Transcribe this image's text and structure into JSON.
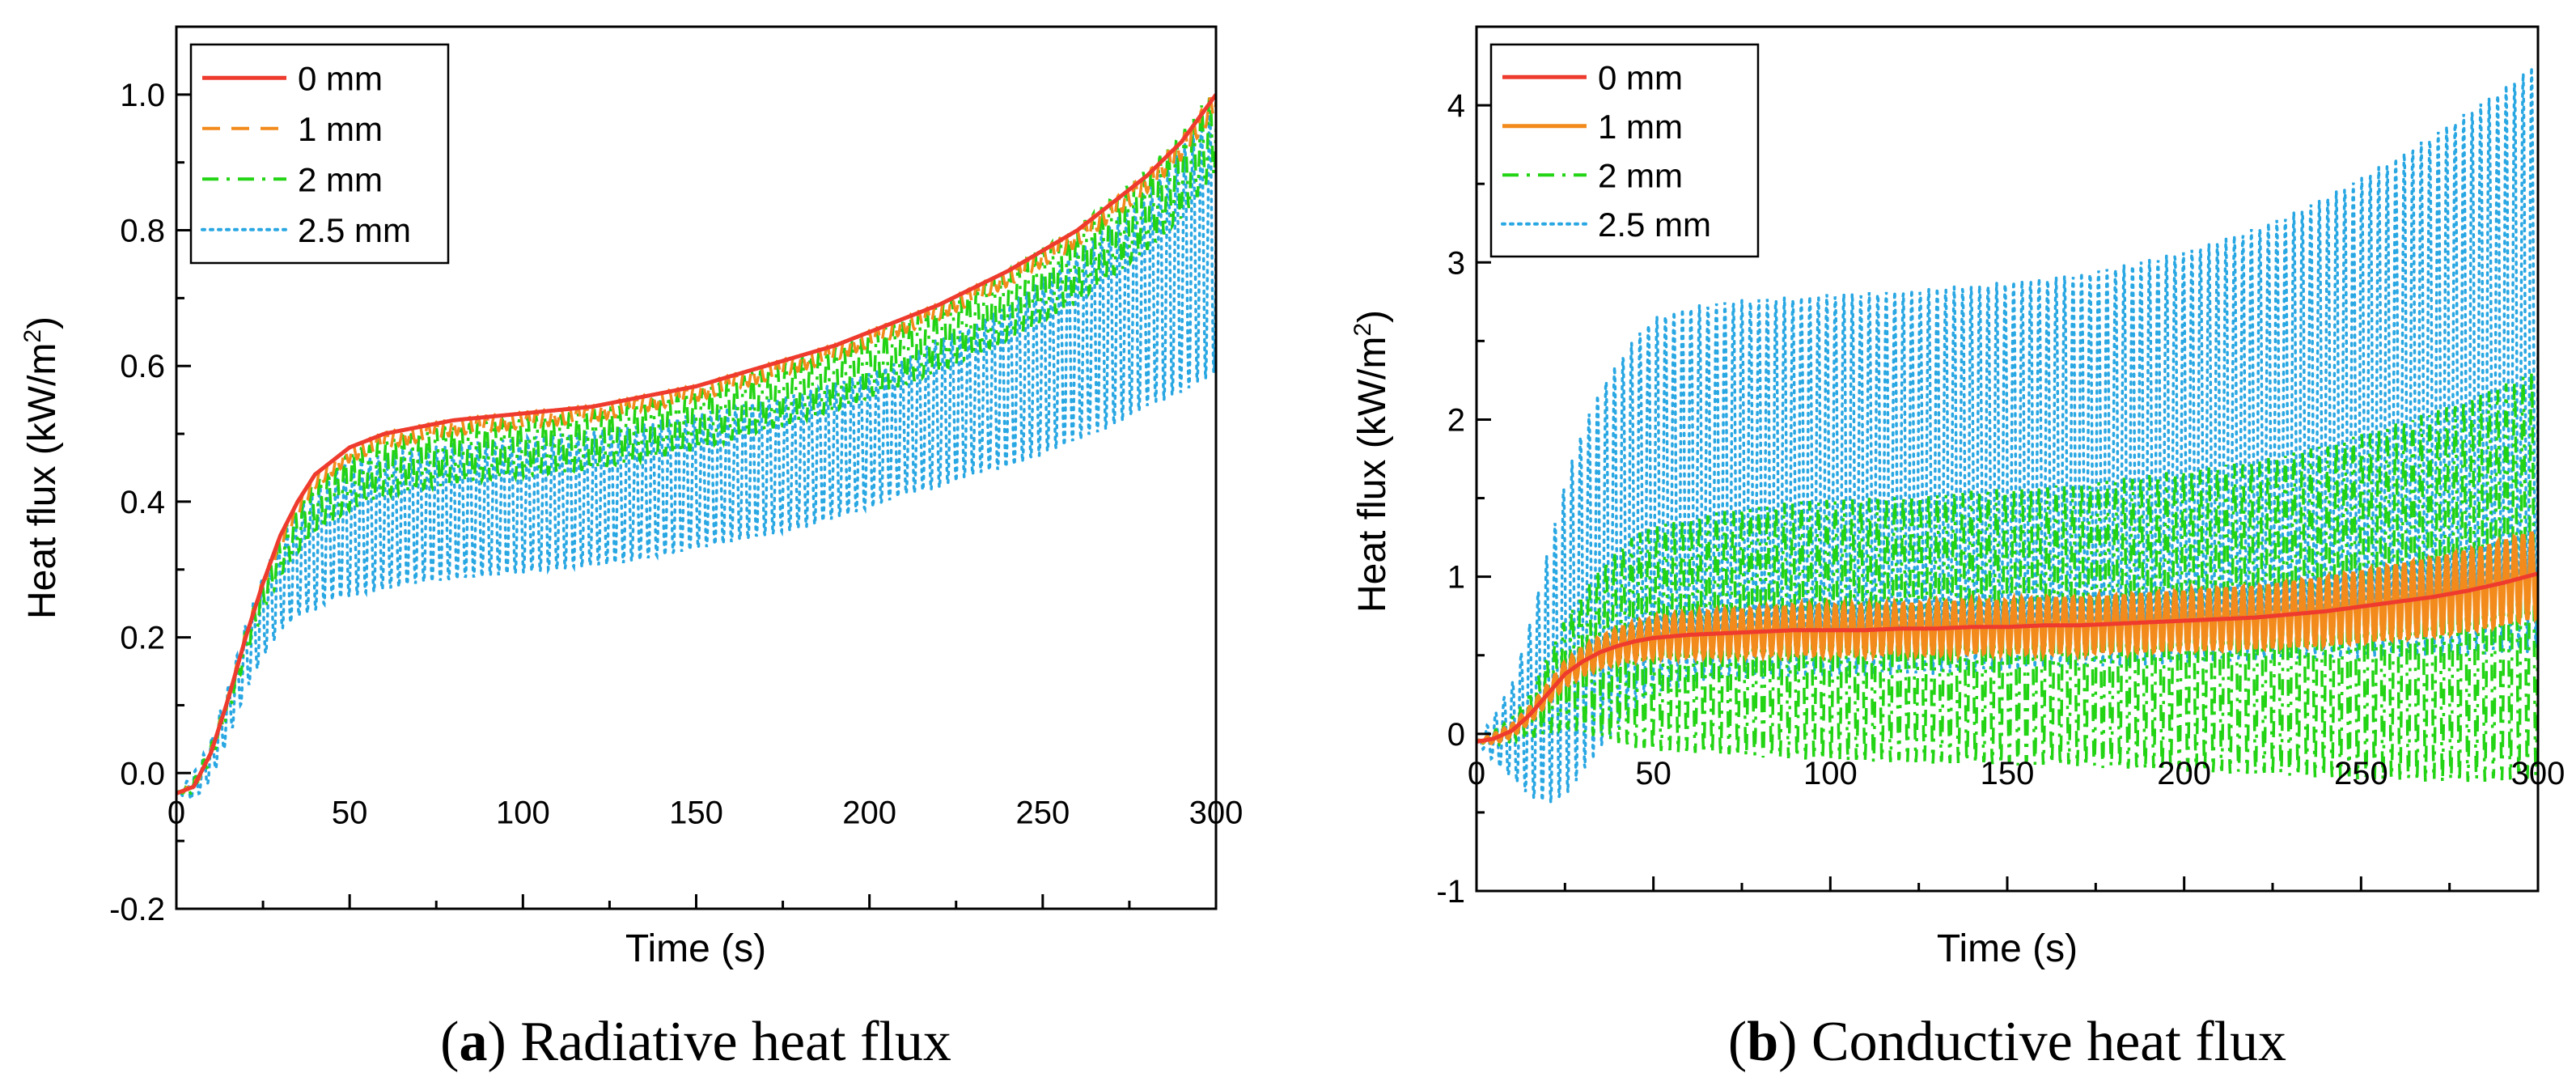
{
  "chart_data": [
    {
      "type": "line",
      "panel_label": "a",
      "caption": "Radiative heat flux",
      "xlabel": "Time (s)",
      "ylabel_main": "Heat flux (kW/m",
      "ylabel_sup": "2",
      "ylabel_end": ")",
      "xlim": [
        0,
        300
      ],
      "ylim": [
        -0.2,
        1.1
      ],
      "xticks": [
        0,
        50,
        100,
        150,
        200,
        250,
        300
      ],
      "xtick_labels": [
        "0",
        "50",
        "100",
        "150",
        "200",
        "250",
        "300"
      ],
      "yticks": [
        -0.2,
        0.0,
        0.2,
        0.4,
        0.6,
        0.8,
        1.0
      ],
      "ytick_labels": [
        "-0.2",
        "0.0",
        "0.2",
        "0.4",
        "0.6",
        "0.8",
        "1.0"
      ],
      "legend_position": "top-left",
      "x": [
        0,
        5,
        10,
        15,
        20,
        25,
        30,
        35,
        40,
        45,
        50,
        60,
        70,
        80,
        90,
        100,
        110,
        120,
        130,
        140,
        150,
        160,
        170,
        180,
        190,
        200,
        210,
        220,
        230,
        240,
        250,
        260,
        270,
        280,
        290,
        300
      ],
      "series": [
        {
          "name": "0 mm",
          "color": "#ee3b2e",
          "style": "solid",
          "values": [
            -0.03,
            -0.02,
            0.03,
            0.11,
            0.2,
            0.28,
            0.35,
            0.4,
            0.44,
            0.46,
            0.48,
            0.5,
            0.51,
            0.52,
            0.525,
            0.53,
            0.535,
            0.54,
            0.55,
            0.56,
            0.57,
            0.585,
            0.6,
            0.615,
            0.63,
            0.65,
            0.67,
            0.69,
            0.715,
            0.74,
            0.77,
            0.8,
            0.84,
            0.88,
            0.93,
            1.0
          ],
          "amp": [
            0,
            0,
            0,
            0,
            0,
            0,
            0,
            0,
            0,
            0,
            0,
            0,
            0,
            0,
            0,
            0,
            0,
            0,
            0,
            0,
            0,
            0,
            0,
            0,
            0,
            0,
            0,
            0,
            0,
            0,
            0,
            0,
            0,
            0,
            0,
            0
          ]
        },
        {
          "name": "1 mm",
          "color": "#f28a1c",
          "style": "dashed",
          "values": [
            -0.03,
            -0.02,
            0.03,
            0.11,
            0.2,
            0.28,
            0.34,
            0.39,
            0.43,
            0.45,
            0.47,
            0.49,
            0.5,
            0.51,
            0.515,
            0.52,
            0.525,
            0.53,
            0.54,
            0.55,
            0.56,
            0.575,
            0.59,
            0.605,
            0.62,
            0.64,
            0.66,
            0.68,
            0.705,
            0.73,
            0.76,
            0.79,
            0.83,
            0.87,
            0.92,
            0.99
          ],
          "amp": [
            0,
            0.005,
            0.005,
            0.006,
            0.007,
            0.008,
            0.009,
            0.01,
            0.01,
            0.011,
            0.011,
            0.012,
            0.012,
            0.012,
            0.012,
            0.012,
            0.012,
            0.012,
            0.012,
            0.012,
            0.012,
            0.012,
            0.012,
            0.012,
            0.012,
            0.012,
            0.012,
            0.012,
            0.012,
            0.012,
            0.013,
            0.013,
            0.014,
            0.015,
            0.016,
            0.017
          ]
        },
        {
          "name": "2 mm",
          "color": "#22d414",
          "style": "dashdot",
          "values": [
            -0.03,
            -0.02,
            0.03,
            0.1,
            0.19,
            0.26,
            0.32,
            0.36,
            0.39,
            0.41,
            0.43,
            0.45,
            0.46,
            0.47,
            0.475,
            0.48,
            0.485,
            0.49,
            0.5,
            0.51,
            0.52,
            0.535,
            0.55,
            0.565,
            0.58,
            0.6,
            0.62,
            0.64,
            0.665,
            0.69,
            0.72,
            0.75,
            0.79,
            0.83,
            0.88,
            0.95
          ],
          "amp": [
            0,
            0.01,
            0.012,
            0.015,
            0.02,
            0.025,
            0.03,
            0.035,
            0.04,
            0.04,
            0.042,
            0.042,
            0.043,
            0.043,
            0.043,
            0.043,
            0.043,
            0.043,
            0.043,
            0.044,
            0.044,
            0.045,
            0.045,
            0.046,
            0.046,
            0.047,
            0.048,
            0.049,
            0.05,
            0.052,
            0.054,
            0.056,
            0.058,
            0.06,
            0.062,
            0.064
          ]
        },
        {
          "name": "2.5 mm",
          "color": "#29a7e3",
          "style": "dotted",
          "values": [
            -0.03,
            -0.02,
            0.02,
            0.09,
            0.17,
            0.23,
            0.28,
            0.31,
            0.33,
            0.35,
            0.36,
            0.37,
            0.38,
            0.385,
            0.39,
            0.395,
            0.4,
            0.405,
            0.41,
            0.42,
            0.43,
            0.44,
            0.45,
            0.46,
            0.475,
            0.49,
            0.51,
            0.53,
            0.55,
            0.57,
            0.6,
            0.63,
            0.66,
            0.7,
            0.74,
            0.79
          ],
          "amp": [
            0,
            0.02,
            0.03,
            0.04,
            0.05,
            0.06,
            0.07,
            0.08,
            0.09,
            0.095,
            0.1,
            0.1,
            0.1,
            0.1,
            0.1,
            0.1,
            0.1,
            0.1,
            0.1,
            0.1,
            0.1,
            0.1,
            0.1,
            0.1,
            0.1,
            0.1,
            0.1,
            0.11,
            0.11,
            0.12,
            0.13,
            0.14,
            0.15,
            0.16,
            0.18,
            0.2
          ]
        }
      ]
    },
    {
      "type": "line",
      "panel_label": "b",
      "caption": "Conductive heat flux",
      "xlabel": "Time (s)",
      "ylabel_main": "Heat flux (kW/m",
      "ylabel_sup": "2",
      "ylabel_end": ")",
      "xlim": [
        0,
        300
      ],
      "ylim": [
        -1,
        4.5
      ],
      "xticks": [
        0,
        50,
        100,
        150,
        200,
        250,
        300
      ],
      "xtick_labels": [
        "0",
        "50",
        "100",
        "150",
        "200",
        "250",
        "300"
      ],
      "yticks": [
        -1,
        0,
        1,
        2,
        3,
        4
      ],
      "ytick_labels": [
        "-1",
        "0",
        "1",
        "2",
        "3",
        "4"
      ],
      "legend_position": "top-left",
      "x": [
        0,
        5,
        10,
        15,
        20,
        25,
        30,
        35,
        40,
        45,
        50,
        60,
        70,
        80,
        90,
        100,
        110,
        120,
        130,
        140,
        150,
        160,
        170,
        180,
        190,
        200,
        210,
        220,
        230,
        240,
        250,
        260,
        270,
        280,
        290,
        300
      ],
      "series": [
        {
          "name": "0 mm",
          "color": "#ee3b2e",
          "style": "solid",
          "values": [
            -0.05,
            -0.03,
            0.02,
            0.12,
            0.25,
            0.38,
            0.46,
            0.52,
            0.56,
            0.59,
            0.61,
            0.63,
            0.64,
            0.65,
            0.66,
            0.66,
            0.66,
            0.67,
            0.67,
            0.68,
            0.68,
            0.69,
            0.69,
            0.7,
            0.71,
            0.72,
            0.73,
            0.74,
            0.76,
            0.78,
            0.81,
            0.84,
            0.87,
            0.91,
            0.96,
            1.02
          ],
          "amp": [
            0,
            0,
            0,
            0,
            0,
            0,
            0,
            0,
            0,
            0,
            0,
            0,
            0,
            0,
            0,
            0,
            0,
            0,
            0,
            0,
            0,
            0,
            0,
            0,
            0,
            0,
            0,
            0,
            0,
            0,
            0,
            0,
            0,
            0,
            0,
            0
          ]
        },
        {
          "name": "1 mm",
          "color": "#f28a1c",
          "style": "solid",
          "values": [
            -0.05,
            -0.03,
            0.02,
            0.12,
            0.25,
            0.38,
            0.46,
            0.52,
            0.56,
            0.59,
            0.61,
            0.63,
            0.64,
            0.65,
            0.66,
            0.66,
            0.66,
            0.67,
            0.67,
            0.68,
            0.68,
            0.69,
            0.69,
            0.7,
            0.71,
            0.72,
            0.73,
            0.74,
            0.76,
            0.78,
            0.81,
            0.84,
            0.87,
            0.91,
            0.96,
            1.02
          ],
          "amp": [
            0,
            0.03,
            0.04,
            0.05,
            0.06,
            0.08,
            0.09,
            0.1,
            0.11,
            0.12,
            0.13,
            0.14,
            0.15,
            0.15,
            0.16,
            0.16,
            0.16,
            0.16,
            0.17,
            0.17,
            0.17,
            0.18,
            0.18,
            0.18,
            0.19,
            0.19,
            0.2,
            0.2,
            0.21,
            0.22,
            0.23,
            0.24,
            0.25,
            0.26,
            0.27,
            0.28
          ]
        },
        {
          "name": "2 mm",
          "color": "#22d414",
          "style": "dashdot",
          "values": [
            -0.05,
            -0.03,
            0.02,
            0.12,
            0.25,
            0.38,
            0.46,
            0.52,
            0.56,
            0.59,
            0.61,
            0.63,
            0.64,
            0.65,
            0.66,
            0.66,
            0.66,
            0.67,
            0.67,
            0.68,
            0.68,
            0.69,
            0.69,
            0.7,
            0.71,
            0.72,
            0.73,
            0.74,
            0.76,
            0.78,
            0.81,
            0.84,
            0.87,
            0.91,
            0.96,
            1.02
          ],
          "amp": [
            0,
            0.05,
            0.08,
            0.15,
            0.25,
            0.35,
            0.45,
            0.55,
            0.62,
            0.68,
            0.72,
            0.75,
            0.78,
            0.8,
            0.82,
            0.83,
            0.84,
            0.85,
            0.86,
            0.87,
            0.88,
            0.89,
            0.9,
            0.92,
            0.94,
            0.96,
            0.98,
            1.0,
            1.03,
            1.06,
            1.1,
            1.14,
            1.18,
            1.22,
            1.26,
            1.3
          ]
        },
        {
          "name": "2.5 mm",
          "color": "#29a7e3",
          "style": "dotted",
          "values": [
            -0.05,
            -0.03,
            0.02,
            0.15,
            0.35,
            0.6,
            0.85,
            1.05,
            1.2,
            1.35,
            1.45,
            1.52,
            1.55,
            1.56,
            1.57,
            1.58,
            1.59,
            1.6,
            1.61,
            1.62,
            1.64,
            1.66,
            1.68,
            1.7,
            1.73,
            1.76,
            1.8,
            1.84,
            1.89,
            1.95,
            2.01,
            2.08,
            2.15,
            2.23,
            2.31,
            2.4
          ],
          "amp": [
            0,
            0.15,
            0.3,
            0.55,
            0.8,
            1.0,
            1.1,
            1.15,
            1.17,
            1.18,
            1.2,
            1.2,
            1.2,
            1.21,
            1.21,
            1.22,
            1.22,
            1.22,
            1.23,
            1.23,
            1.24,
            1.24,
            1.25,
            1.27,
            1.29,
            1.31,
            1.34,
            1.38,
            1.42,
            1.47,
            1.53,
            1.59,
            1.66,
            1.73,
            1.8,
            1.88
          ]
        }
      ]
    }
  ]
}
